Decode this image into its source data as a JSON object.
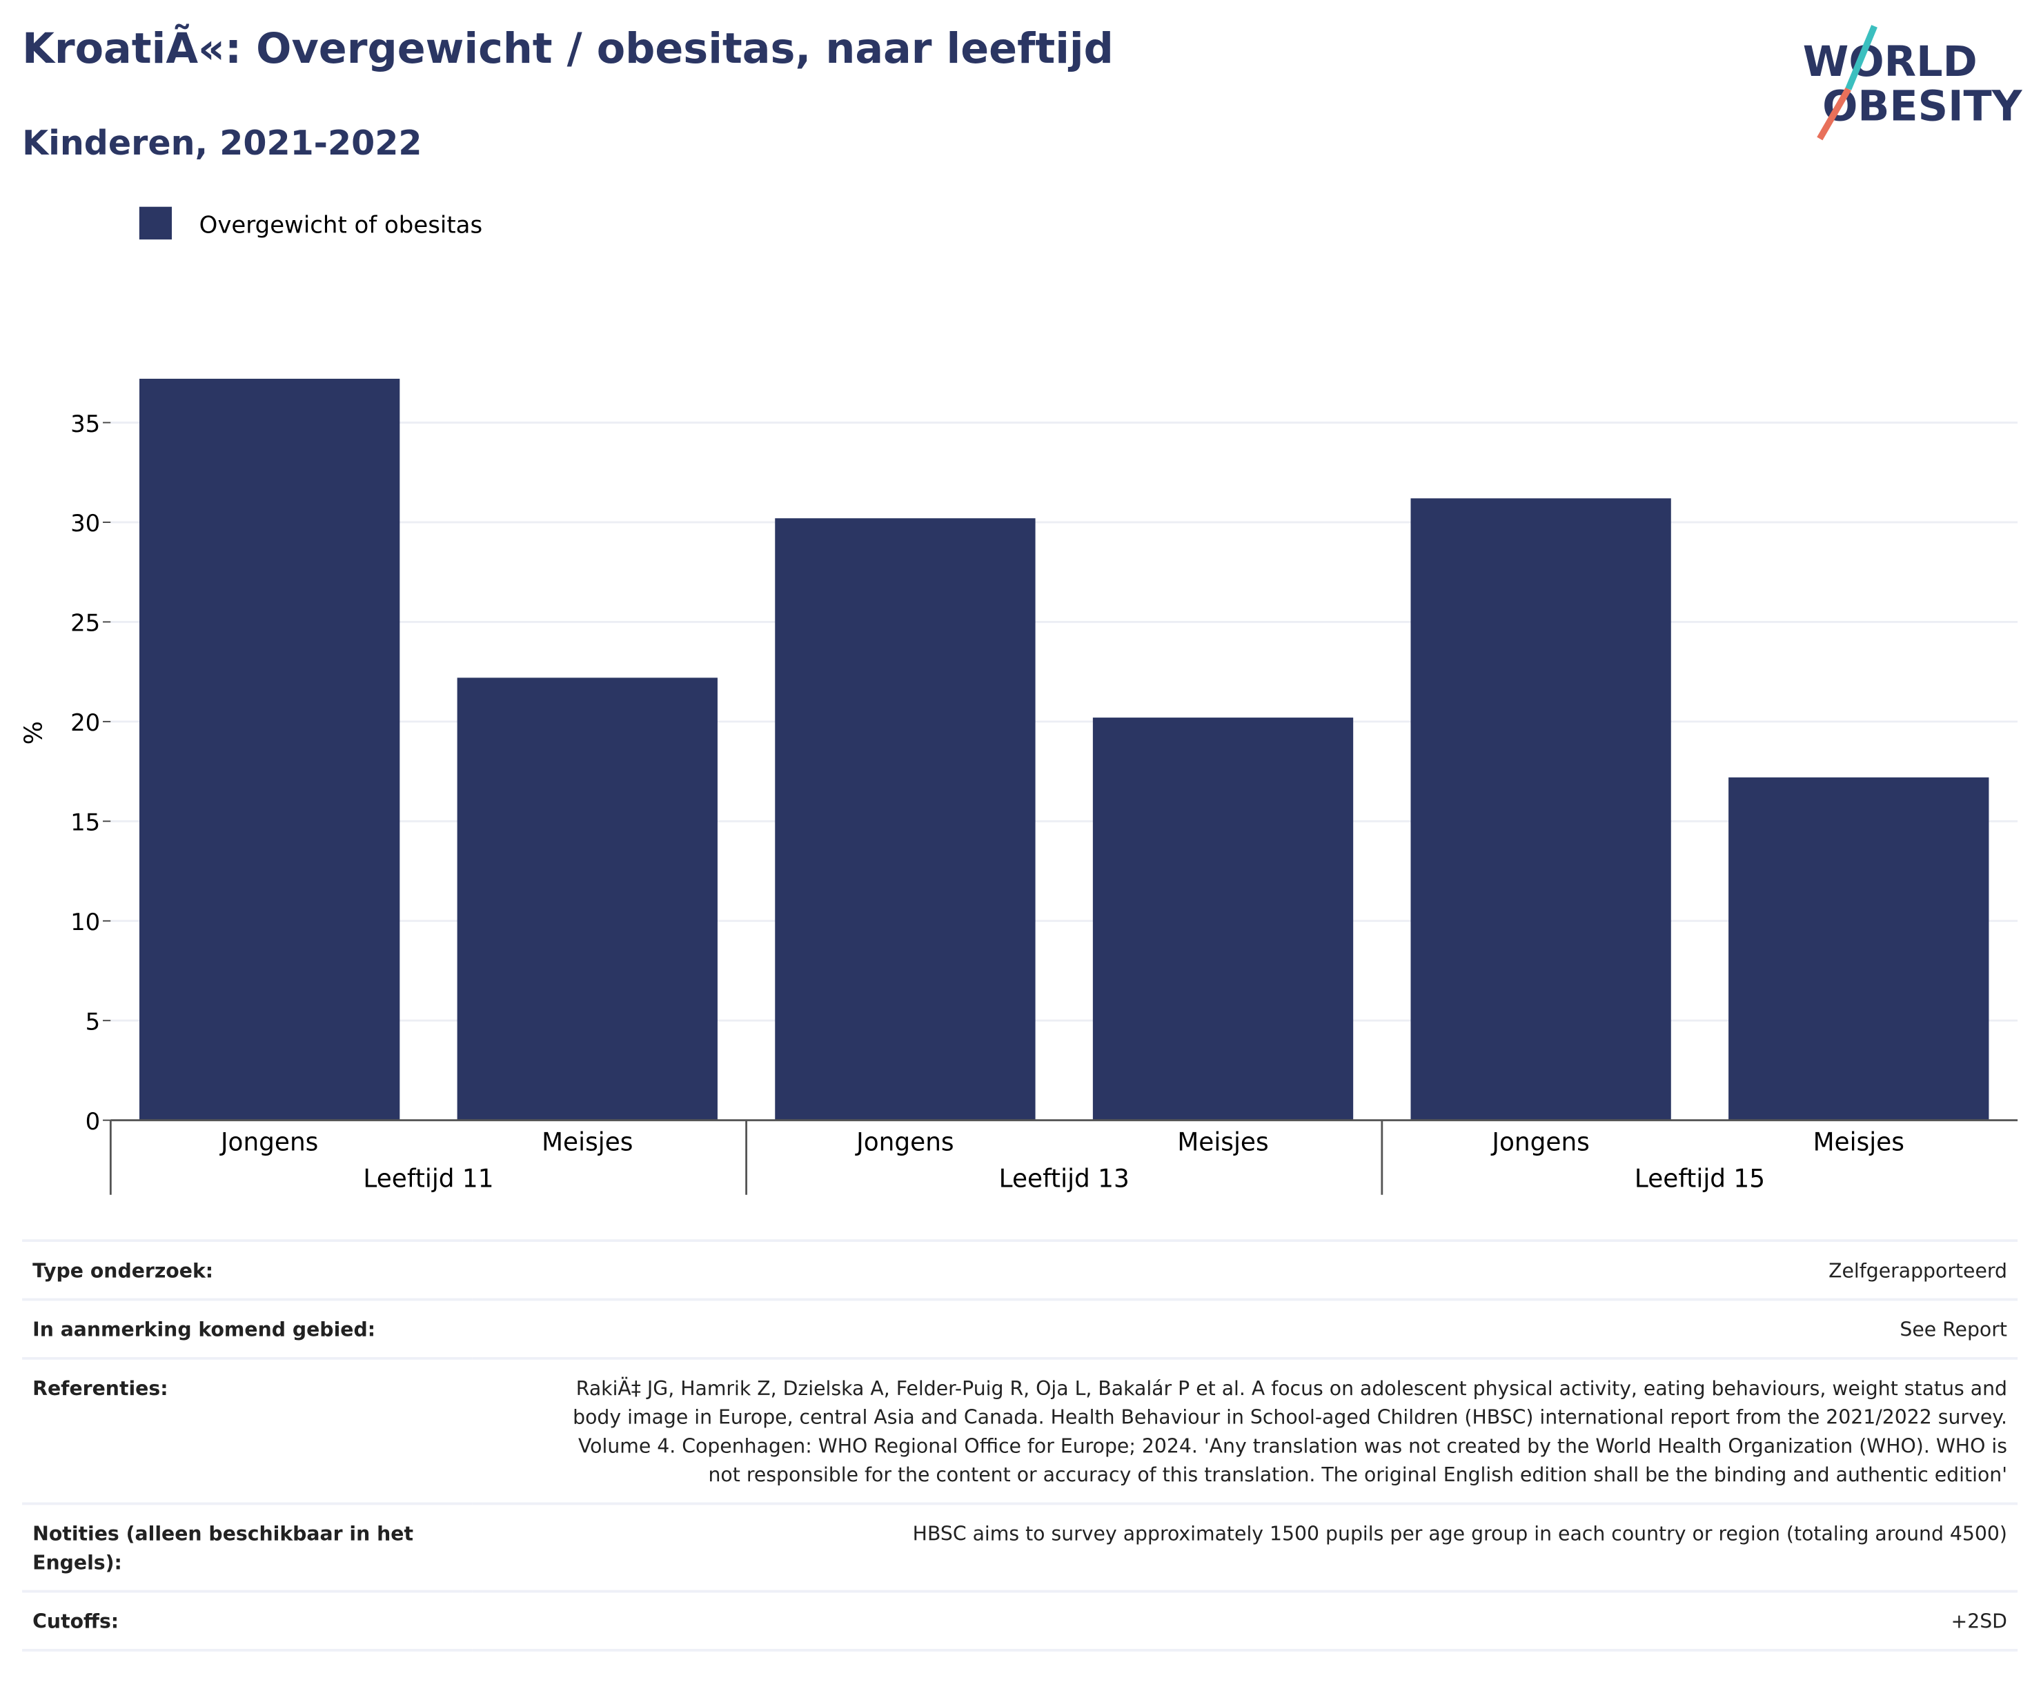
{
  "chart_data": {
    "type": "bar",
    "title": "KroatiÃ«: Overgewicht / obesitas, naar leeftijd",
    "subtitle": "Kinderen, 2021-2022",
    "logo": [
      "WORLD",
      "OBESITY"
    ],
    "y_label": "%",
    "categories": [
      "Jongens",
      "Meisjes",
      "Jongens",
      "Meisjes",
      "Jongens",
      "Meisjes"
    ],
    "groups": [
      "Leeftijd 11",
      "Leeftijd 13",
      "Leeftijd 15"
    ],
    "series": [
      {
        "name": "Overgewicht of obesitas",
        "color": "#2b3663",
        "values": [
          37.2,
          22.2,
          30.2,
          20.2,
          31.2,
          17.2
        ]
      }
    ],
    "ylim": [
      0,
      39
    ],
    "yticks": [
      0,
      5,
      10,
      15,
      20,
      25,
      30,
      35
    ],
    "grid": true,
    "legend": "top-left"
  },
  "table": {
    "rows": [
      [
        "Type onderzoek:",
        "Zelfgerapporteerd"
      ],
      [
        "In aanmerking komend gebied:",
        "See Report"
      ],
      [
        "Referenties:",
        "RakiÄ‡ JG, Hamrik Z, Dzielska A, Felder-Puig R, Oja L, Bakalár P et al. A focus on adolescent physical activity, eating behaviours, weight status and body image in Europe, central Asia and Canada. Health Behaviour in School-aged Children (HBSC) international report from the 2021/2022 survey. Volume 4. Copenhagen: WHO Regional Office for Europe; 2024. 'Any translation was not created by the World Health Organization (WHO). WHO is not responsible for the content or accuracy of this translation. The original English edition shall be the binding and authentic edition'"
      ],
      [
        "Notities (alleen beschikbaar in het Engels):",
        "HBSC aims to survey approximately 1500 pupils per age group in each country or region (totaling around 4500)"
      ],
      [
        "Cutoffs:",
        "+2SD"
      ]
    ]
  }
}
